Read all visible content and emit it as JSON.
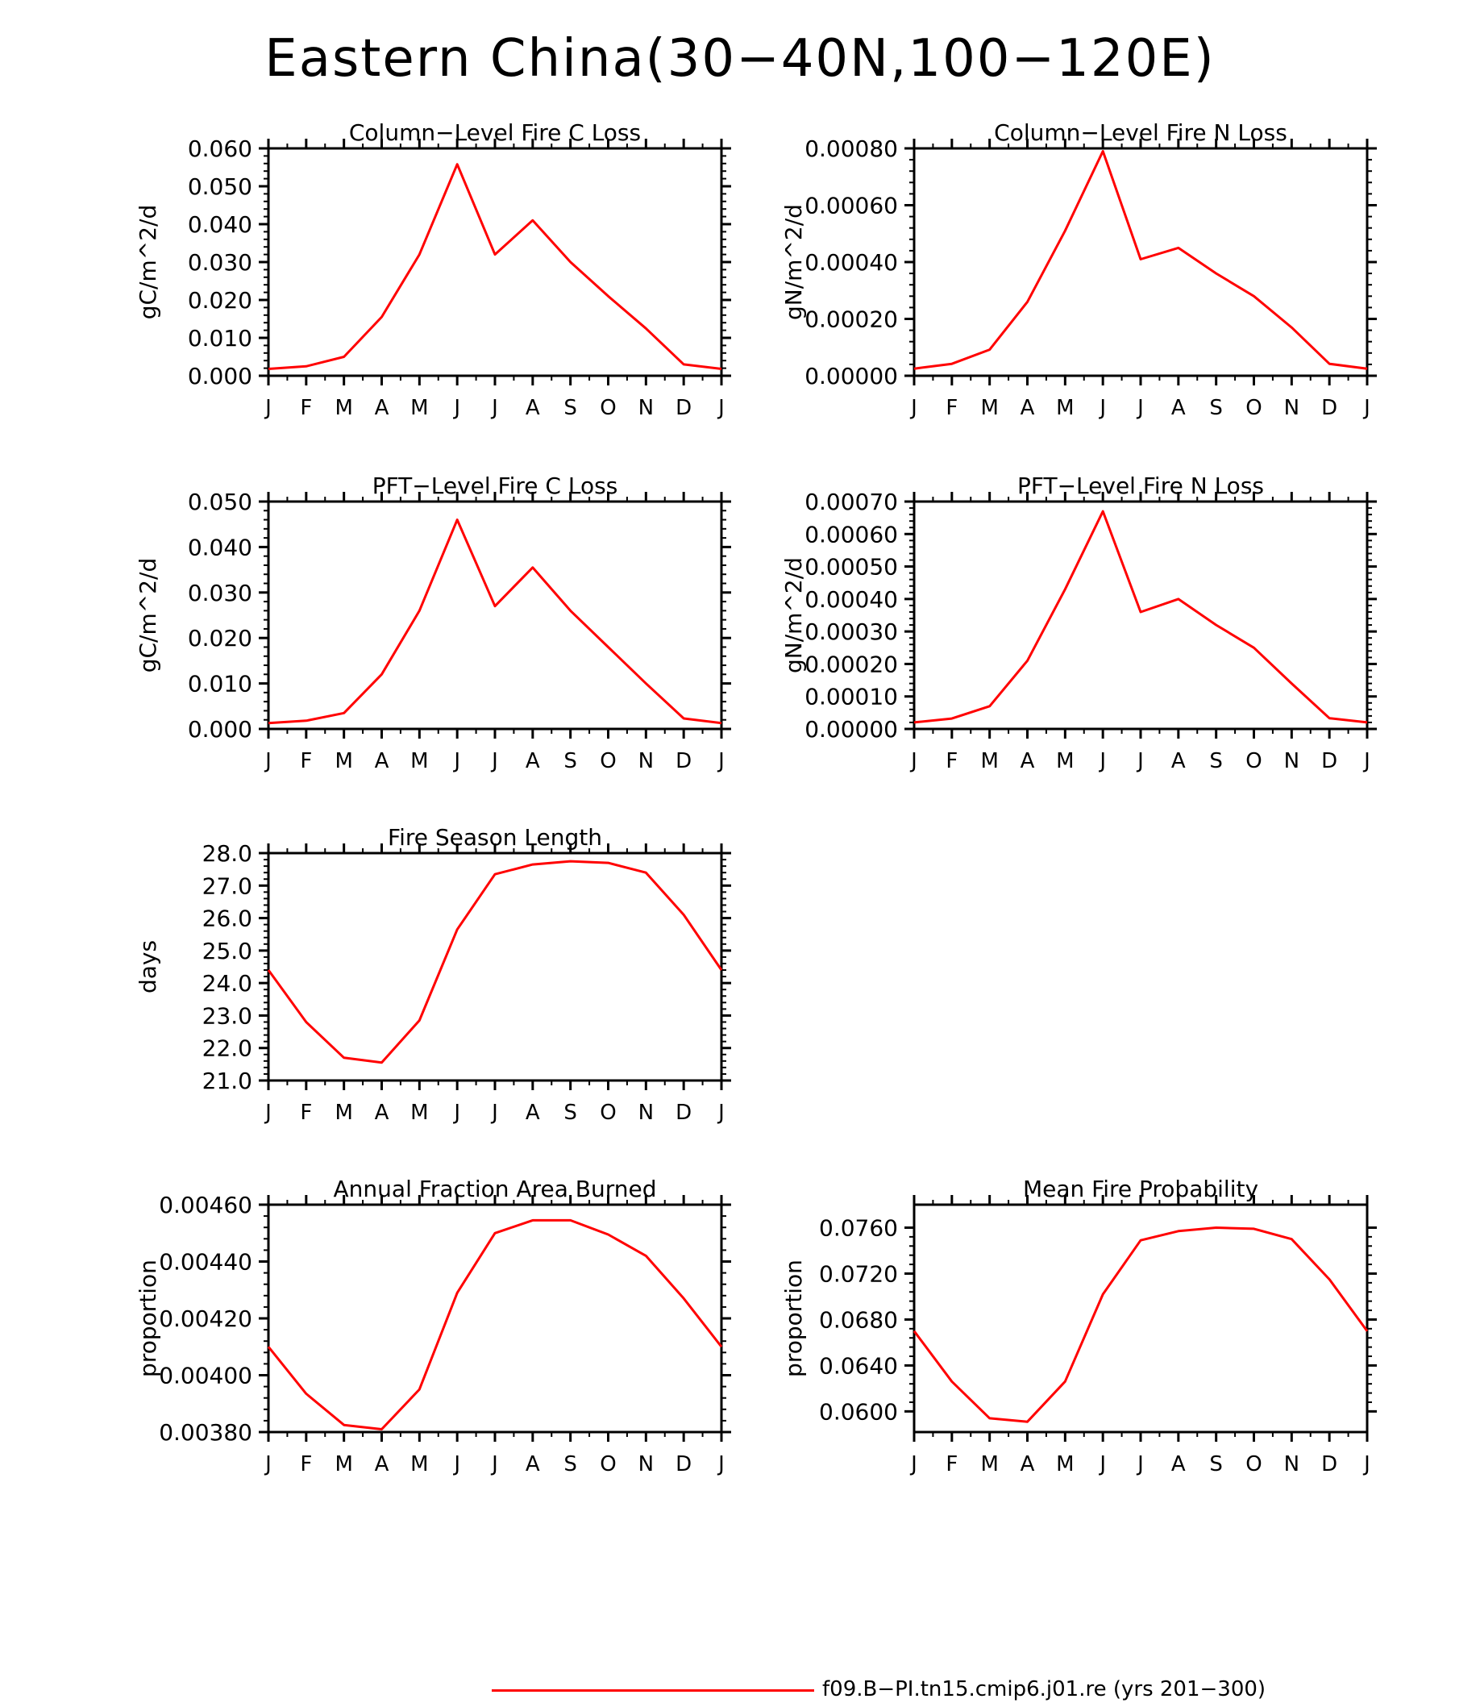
{
  "figure": {
    "title": "Eastern China(30−40N,100−120E)",
    "line_color": "#ff0000",
    "legend": {
      "label": "f09.B−PI.tn15.cmip6.j01.re (yrs 201−300)",
      "color": "#ff0000"
    }
  },
  "chart_data": [
    {
      "type": "line",
      "title": "Column−Level Fire C Loss",
      "ylabel": "gC/m^2/d",
      "categories": [
        "J",
        "F",
        "M",
        "A",
        "M",
        "J",
        "J",
        "A",
        "S",
        "O",
        "N",
        "D",
        "J"
      ],
      "values": [
        0.0018,
        0.0025,
        0.005,
        0.0155,
        0.032,
        0.0558,
        0.032,
        0.041,
        0.03,
        0.021,
        0.0125,
        0.003,
        0.0018
      ],
      "ylim": [
        0,
        0.06
      ],
      "yticks": [
        "0.000",
        "0.010",
        "0.020",
        "0.030",
        "0.040",
        "0.050",
        "0.060"
      ]
    },
    {
      "type": "line",
      "title": "Column−Level Fire N Loss",
      "ylabel": "gN/m^2/d",
      "categories": [
        "J",
        "F",
        "M",
        "A",
        "M",
        "J",
        "J",
        "A",
        "S",
        "O",
        "N",
        "D",
        "J"
      ],
      "values": [
        2.5e-05,
        4.2e-05,
        9.2e-05,
        0.00026,
        0.00051,
        0.00079,
        0.00041,
        0.00045,
        0.00036,
        0.00028,
        0.00017,
        4.2e-05,
        2.5e-05
      ],
      "ylim": [
        0,
        0.0008
      ],
      "yticks": [
        "0.00000",
        "0.00020",
        "0.00040",
        "0.00060",
        "0.00080"
      ]
    },
    {
      "type": "line",
      "title": "PFT−Level Fire C Loss",
      "ylabel": "gC/m^2/d",
      "categories": [
        "J",
        "F",
        "M",
        "A",
        "M",
        "J",
        "J",
        "A",
        "S",
        "O",
        "N",
        "D",
        "J"
      ],
      "values": [
        0.0013,
        0.0018,
        0.0035,
        0.012,
        0.026,
        0.046,
        0.027,
        0.0355,
        0.026,
        0.018,
        0.01,
        0.0023,
        0.0013
      ],
      "ylim": [
        0,
        0.05
      ],
      "yticks": [
        "0.000",
        "0.010",
        "0.020",
        "0.030",
        "0.040",
        "0.050"
      ]
    },
    {
      "type": "line",
      "title": "PFT−Level Fire N Loss",
      "ylabel": "gN/m^2/d",
      "categories": [
        "J",
        "F",
        "M",
        "A",
        "M",
        "J",
        "J",
        "A",
        "S",
        "O",
        "N",
        "D",
        "J"
      ],
      "values": [
        2e-05,
        3.2e-05,
        7e-05,
        0.00021,
        0.00043,
        0.00067,
        0.00036,
        0.0004,
        0.00032,
        0.00025,
        0.00014,
        3.3e-05,
        2e-05
      ],
      "ylim": [
        0,
        0.0007
      ],
      "yticks": [
        "0.00000",
        "0.00010",
        "0.00020",
        "0.00030",
        "0.00040",
        "0.00050",
        "0.00060",
        "0.00070"
      ]
    },
    {
      "type": "line",
      "title": "Fire Season Length",
      "ylabel": "days",
      "categories": [
        "J",
        "F",
        "M",
        "A",
        "M",
        "J",
        "J",
        "A",
        "S",
        "O",
        "N",
        "D",
        "J"
      ],
      "values": [
        24.4,
        22.8,
        21.7,
        21.55,
        22.85,
        25.65,
        27.35,
        27.65,
        27.75,
        27.7,
        27.4,
        26.1,
        24.4
      ],
      "ylim": [
        21,
        28
      ],
      "yticks": [
        "21.0",
        "22.0",
        "23.0",
        "24.0",
        "25.0",
        "26.0",
        "27.0",
        "28.0"
      ]
    },
    {
      "type": "line",
      "title": "Annual Fraction Area Burned",
      "ylabel": "proportion",
      "categories": [
        "J",
        "F",
        "M",
        "A",
        "M",
        "J",
        "J",
        "A",
        "S",
        "O",
        "N",
        "D",
        "J"
      ],
      "values": [
        0.0041,
        0.003935,
        0.003825,
        0.00381,
        0.00395,
        0.00429,
        0.0045,
        0.004545,
        0.004545,
        0.004495,
        0.00442,
        0.00427,
        0.0041
      ],
      "ylim": [
        0.0038,
        0.0046
      ],
      "yticks": [
        "0.00380",
        "0.00400",
        "0.00420",
        "0.00440",
        "0.00460"
      ]
    },
    {
      "type": "line",
      "title": "Mean Fire Probability",
      "ylabel": "proportion",
      "categories": [
        "J",
        "F",
        "M",
        "A",
        "M",
        "J",
        "J",
        "A",
        "S",
        "O",
        "N",
        "D",
        "J"
      ],
      "values": [
        0.067,
        0.0626,
        0.0594,
        0.0591,
        0.0626,
        0.0702,
        0.0749,
        0.0757,
        0.076,
        0.0759,
        0.075,
        0.0715,
        0.067
      ],
      "ylim": [
        0.0582,
        0.078
      ],
      "yticks": [
        "0.0600",
        "0.0640",
        "0.0680",
        "0.0720",
        "0.0760"
      ],
      "ytick_values": [
        0.06,
        0.064,
        0.068,
        0.072,
        0.076
      ]
    }
  ]
}
